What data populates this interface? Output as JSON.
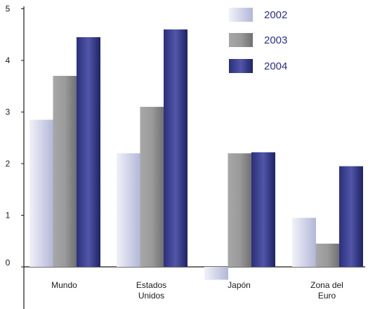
{
  "chart_data": {
    "type": "bar",
    "categories": [
      [
        "Mundo"
      ],
      [
        "Estados",
        "Unidos"
      ],
      [
        "Japón"
      ],
      [
        "Zona del",
        "Euro"
      ]
    ],
    "series": [
      {
        "name": "2002",
        "values": [
          2.85,
          2.2,
          -0.25,
          0.95
        ],
        "color": "#c6c9e1"
      },
      {
        "name": "2003",
        "values": [
          3.7,
          3.1,
          2.2,
          0.45
        ],
        "color": "#9b9b9b"
      },
      {
        "name": "2004",
        "values": [
          4.45,
          4.6,
          2.22,
          1.95
        ],
        "color": "#2e3383"
      }
    ],
    "yticks": [
      "0",
      "1",
      "2",
      "3",
      "4",
      "5"
    ],
    "ylim": [
      -0.7,
      5
    ],
    "grid": false,
    "legend_position": "top-right",
    "title": "",
    "xlabel": "",
    "ylabel": ""
  }
}
